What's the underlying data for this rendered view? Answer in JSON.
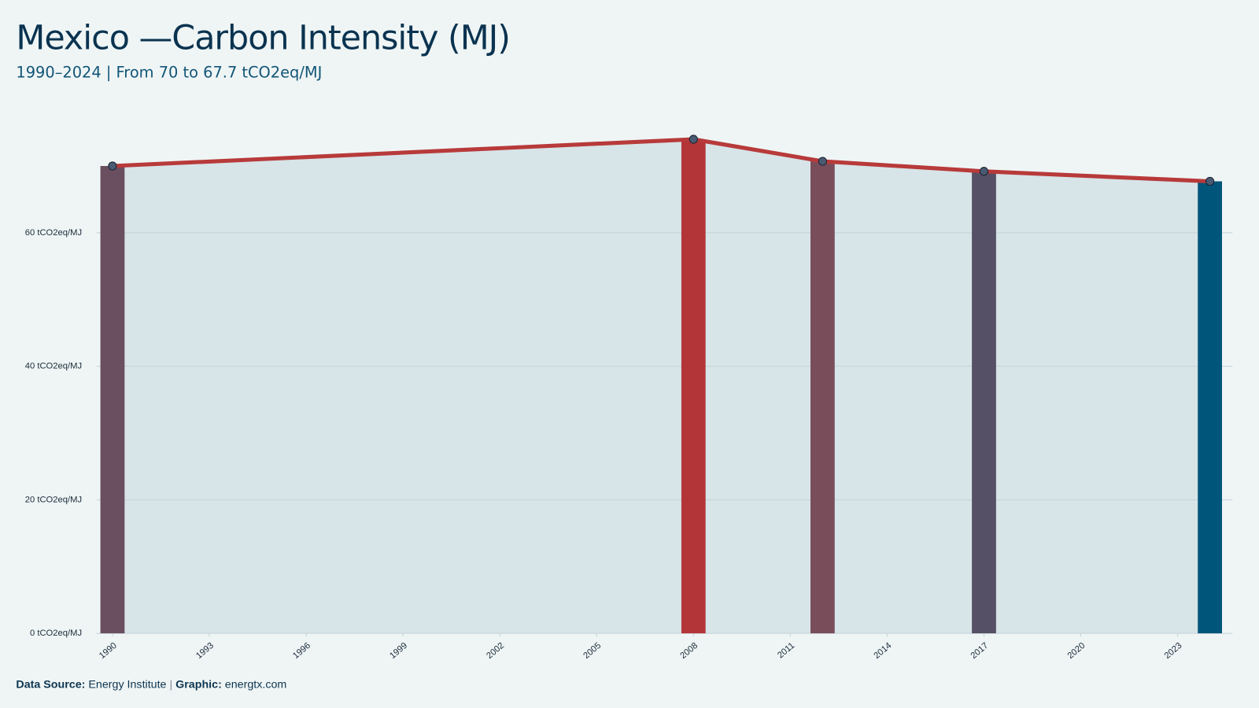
{
  "chart_data": {
    "type": "area",
    "title": "Mexico —Carbon Intensity (MJ)",
    "subtitle": "1990–2024 | From 70 to 67.7 tCO2eq/MJ",
    "x": [
      1990,
      2008,
      2012,
      2017,
      2024
    ],
    "values": [
      70,
      74,
      70.7,
      69.2,
      67.7
    ],
    "bar_colors": [
      "#6a4f60",
      "#b33538",
      "#7a4d5a",
      "#555066",
      "#00557a"
    ],
    "line_color": "#b83a3a",
    "area_color": "#d7e4e8",
    "xlim": [
      1989.5,
      2024.7
    ],
    "xticks": [
      1990,
      1993,
      1996,
      1999,
      2002,
      2005,
      2008,
      2011,
      2014,
      2017,
      2020,
      2023
    ],
    "ylim": [
      0,
      80
    ],
    "yticks": [
      {
        "value": 0,
        "label": "0 tCO2eq/MJ"
      },
      {
        "value": 20,
        "label": "20 tCO2eq/MJ"
      },
      {
        "value": 40,
        "label": "40 tCO2eq/MJ"
      },
      {
        "value": 60,
        "label": "60 tCO2eq/MJ"
      }
    ],
    "grid": true,
    "source_label": "Data Source:",
    "source": "Energy Institute",
    "separator": "|",
    "graphic_label": "Graphic:",
    "graphic": "energtx.com"
  }
}
